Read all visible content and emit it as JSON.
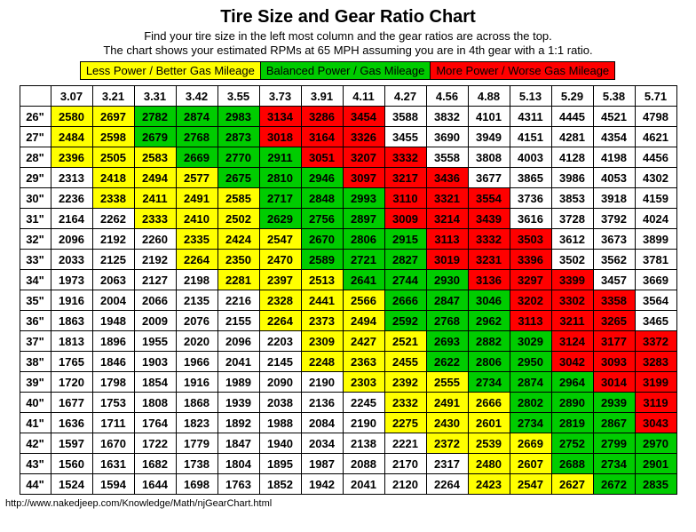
{
  "title": "Tire Size and Gear Ratio Chart",
  "subtitle1": "Find your tire size in the left most column and the gear ratios are across the top.",
  "subtitle2": "The chart shows your estimated RPMs at 65 MPH assuming you are in 4th gear with a 1:1 ratio.",
  "legend": {
    "yellow": {
      "label": "Less Power / Better Gas Mileage",
      "color": "#ffff00"
    },
    "green": {
      "label": "Balanced Power / Gas Mileage",
      "color": "#00cc00"
    },
    "red": {
      "label": "More Power / Worse Gas Mileage",
      "color": "#ff0000"
    }
  },
  "colors": {
    "white": "#ffffff",
    "yellow": "#ffff00",
    "green": "#00cc00",
    "red": "#ff0000"
  },
  "gear_ratios": [
    "3.07",
    "3.21",
    "3.31",
    "3.42",
    "3.55",
    "3.73",
    "3.91",
    "4.11",
    "4.27",
    "4.56",
    "4.88",
    "5.13",
    "5.29",
    "5.38",
    "5.71"
  ],
  "tire_sizes": [
    "26\"",
    "27\"",
    "28\"",
    "29\"",
    "30\"",
    "31\"",
    "32\"",
    "33\"",
    "34\"",
    "35\"",
    "36\"",
    "37\"",
    "38\"",
    "39\"",
    "40\"",
    "41\"",
    "42\"",
    "43\"",
    "44\""
  ],
  "values": [
    [
      2580,
      2697,
      2782,
      2874,
      2983,
      3134,
      3286,
      3454,
      3588,
      3832,
      4101,
      4311,
      4445,
      4521,
      4798
    ],
    [
      2484,
      2598,
      2679,
      2768,
      2873,
      3018,
      3164,
      3326,
      3455,
      3690,
      3949,
      4151,
      4281,
      4354,
      4621
    ],
    [
      2396,
      2505,
      2583,
      2669,
      2770,
      2911,
      3051,
      3207,
      3332,
      3558,
      3808,
      4003,
      4128,
      4198,
      4456
    ],
    [
      2313,
      2418,
      2494,
      2577,
      2675,
      2810,
      2946,
      3097,
      3217,
      3436,
      3677,
      3865,
      3986,
      4053,
      4302
    ],
    [
      2236,
      2338,
      2411,
      2491,
      2585,
      2717,
      2848,
      2993,
      3110,
      3321,
      3554,
      3736,
      3853,
      3918,
      4159
    ],
    [
      2164,
      2262,
      2333,
      2410,
      2502,
      2629,
      2756,
      2897,
      3009,
      3214,
      3439,
      3616,
      3728,
      3792,
      4024
    ],
    [
      2096,
      2192,
      2260,
      2335,
      2424,
      2547,
      2670,
      2806,
      2915,
      3113,
      3332,
      3503,
      3612,
      3673,
      3899
    ],
    [
      2033,
      2125,
      2192,
      2264,
      2350,
      2470,
      2589,
      2721,
      2827,
      3019,
      3231,
      3396,
      3502,
      3562,
      3781
    ],
    [
      1973,
      2063,
      2127,
      2198,
      2281,
      2397,
      2513,
      2641,
      2744,
      2930,
      3136,
      3297,
      3399,
      3457,
      3669
    ],
    [
      1916,
      2004,
      2066,
      2135,
      2216,
      2328,
      2441,
      2566,
      2666,
      2847,
      3046,
      3202,
      3302,
      3358,
      3564
    ],
    [
      1863,
      1948,
      2009,
      2076,
      2155,
      2264,
      2373,
      2494,
      2592,
      2768,
      2962,
      3113,
      3211,
      3265,
      3465
    ],
    [
      1813,
      1896,
      1955,
      2020,
      2096,
      2203,
      2309,
      2427,
      2521,
      2693,
      2882,
      3029,
      3124,
      3177,
      3372
    ],
    [
      1765,
      1846,
      1903,
      1966,
      2041,
      2145,
      2248,
      2363,
      2455,
      2622,
      2806,
      2950,
      3042,
      3093,
      3283
    ],
    [
      1720,
      1798,
      1854,
      1916,
      1989,
      2090,
      2190,
      2303,
      2392,
      2555,
      2734,
      2874,
      2964,
      3014,
      3199
    ],
    [
      1677,
      1753,
      1808,
      1868,
      1939,
      2038,
      2136,
      2245,
      2332,
      2491,
      2666,
      2802,
      2890,
      2939,
      3119
    ],
    [
      1636,
      1711,
      1764,
      1823,
      1892,
      1988,
      2084,
      2190,
      2275,
      2430,
      2601,
      2734,
      2819,
      2867,
      3043
    ],
    [
      1597,
      1670,
      1722,
      1779,
      1847,
      1940,
      2034,
      2138,
      2221,
      2372,
      2539,
      2669,
      2752,
      2799,
      2970
    ],
    [
      1560,
      1631,
      1682,
      1738,
      1804,
      1895,
      1987,
      2088,
      2170,
      2317,
      2480,
      2607,
      2688,
      2734,
      2901
    ],
    [
      1524,
      1594,
      1644,
      1698,
      1763,
      1852,
      1942,
      2041,
      2120,
      2264,
      2423,
      2547,
      2627,
      2672,
      2835
    ]
  ],
  "cell_colors": [
    [
      "y",
      "y",
      "g",
      "g",
      "g",
      "r",
      "r",
      "r",
      "w",
      "w",
      "w",
      "w",
      "w",
      "w",
      "w"
    ],
    [
      "y",
      "y",
      "g",
      "g",
      "g",
      "r",
      "r",
      "r",
      "w",
      "w",
      "w",
      "w",
      "w",
      "w",
      "w"
    ],
    [
      "y",
      "y",
      "y",
      "g",
      "g",
      "g",
      "r",
      "r",
      "r",
      "w",
      "w",
      "w",
      "w",
      "w",
      "w"
    ],
    [
      "w",
      "y",
      "y",
      "y",
      "g",
      "g",
      "g",
      "r",
      "r",
      "r",
      "w",
      "w",
      "w",
      "w",
      "w"
    ],
    [
      "w",
      "y",
      "y",
      "y",
      "y",
      "g",
      "g",
      "g",
      "r",
      "r",
      "r",
      "w",
      "w",
      "w",
      "w"
    ],
    [
      "w",
      "w",
      "y",
      "y",
      "y",
      "g",
      "g",
      "g",
      "r",
      "r",
      "r",
      "w",
      "w",
      "w",
      "w"
    ],
    [
      "w",
      "w",
      "w",
      "y",
      "y",
      "y",
      "g",
      "g",
      "g",
      "r",
      "r",
      "r",
      "w",
      "w",
      "w"
    ],
    [
      "w",
      "w",
      "w",
      "y",
      "y",
      "y",
      "g",
      "g",
      "g",
      "r",
      "r",
      "r",
      "w",
      "w",
      "w"
    ],
    [
      "w",
      "w",
      "w",
      "w",
      "y",
      "y",
      "y",
      "g",
      "g",
      "g",
      "r",
      "r",
      "r",
      "w",
      "w"
    ],
    [
      "w",
      "w",
      "w",
      "w",
      "w",
      "y",
      "y",
      "y",
      "g",
      "g",
      "g",
      "r",
      "r",
      "r",
      "w"
    ],
    [
      "w",
      "w",
      "w",
      "w",
      "w",
      "y",
      "y",
      "y",
      "g",
      "g",
      "g",
      "r",
      "r",
      "r",
      "w"
    ],
    [
      "w",
      "w",
      "w",
      "w",
      "w",
      "w",
      "y",
      "y",
      "y",
      "g",
      "g",
      "g",
      "r",
      "r",
      "r"
    ],
    [
      "w",
      "w",
      "w",
      "w",
      "w",
      "w",
      "y",
      "y",
      "y",
      "g",
      "g",
      "g",
      "r",
      "r",
      "r"
    ],
    [
      "w",
      "w",
      "w",
      "w",
      "w",
      "w",
      "w",
      "y",
      "y",
      "y",
      "g",
      "g",
      "g",
      "r",
      "r"
    ],
    [
      "w",
      "w",
      "w",
      "w",
      "w",
      "w",
      "w",
      "w",
      "y",
      "y",
      "y",
      "g",
      "g",
      "g",
      "r"
    ],
    [
      "w",
      "w",
      "w",
      "w",
      "w",
      "w",
      "w",
      "w",
      "y",
      "y",
      "y",
      "g",
      "g",
      "g",
      "r"
    ],
    [
      "w",
      "w",
      "w",
      "w",
      "w",
      "w",
      "w",
      "w",
      "w",
      "y",
      "y",
      "y",
      "g",
      "g",
      "g"
    ],
    [
      "w",
      "w",
      "w",
      "w",
      "w",
      "w",
      "w",
      "w",
      "w",
      "w",
      "y",
      "y",
      "g",
      "g",
      "g"
    ],
    [
      "w",
      "w",
      "w",
      "w",
      "w",
      "w",
      "w",
      "w",
      "w",
      "w",
      "y",
      "y",
      "y",
      "g",
      "g"
    ]
  ],
  "footer": "http://www.nakedjeep.com/Knowledge/Math/njGearChart.html"
}
